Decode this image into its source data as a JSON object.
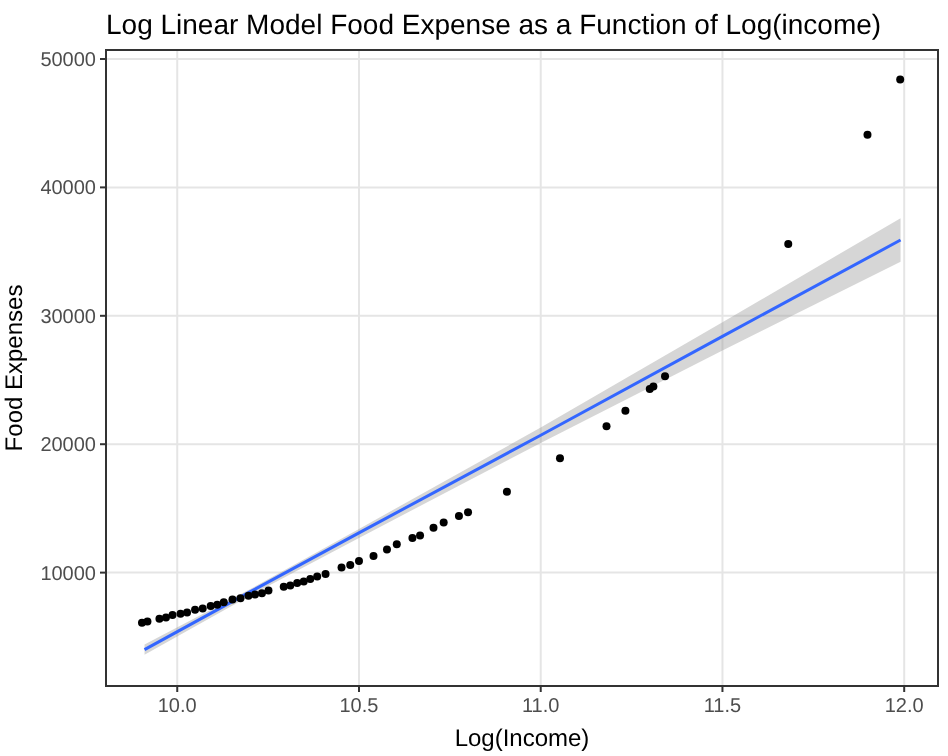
{
  "chart_data": {
    "type": "scatter",
    "title": "Log Linear Model Food Expense as a Function of Log(income)",
    "xlabel": "Log(Income)",
    "ylabel": "Food Expenses",
    "xlim": [
      9.804,
      12.093
    ],
    "ylim": [
      1170,
      50700
    ],
    "xticks": [
      {
        "value": 10,
        "label": "10.0"
      },
      10.5,
      {
        "value": 11,
        "label": "11.0"
      },
      11.5,
      {
        "value": 12,
        "label": "12.0"
      }
    ],
    "yticks": [
      10000,
      20000,
      30000,
      40000,
      50000
    ],
    "grid": true,
    "series": [
      {
        "color": "#000000",
        "marker": "circle",
        "x": [
          9.903,
          9.918,
          9.951,
          9.969,
          9.987,
          10.009,
          10.027,
          10.049,
          10.07,
          10.092,
          10.11,
          10.128,
          10.152,
          10.174,
          10.196,
          10.214,
          10.233,
          10.251,
          10.293,
          10.311,
          10.33,
          10.348,
          10.366,
          10.385,
          10.408,
          10.452,
          10.476,
          10.5,
          10.54,
          10.577,
          10.604,
          10.647,
          10.668,
          10.705,
          10.733,
          10.775,
          10.8,
          10.907,
          11.053,
          11.181,
          11.233,
          11.3,
          11.31,
          11.342,
          11.681,
          11.899,
          11.989
        ],
        "values": [
          6100,
          6200,
          6400,
          6500,
          6700,
          6800,
          6900,
          7100,
          7200,
          7400,
          7500,
          7700,
          7900,
          8000,
          8200,
          8300,
          8400,
          8600,
          8900,
          9000,
          9200,
          9300,
          9500,
          9700,
          9900,
          10400,
          10600,
          10900,
          11300,
          11800,
          12200,
          12700,
          12900,
          13500,
          13900,
          14400,
          14700,
          16300,
          18900,
          21400,
          22600,
          24300,
          24500,
          25300,
          35600,
          44100,
          48400
        ]
      },
      {
        "type": "line",
        "color": "#3366ff",
        "x": [
          9.91,
          10.2,
          10.5,
          11.0,
          11.5,
          11.99
        ],
        "values": [
          4000,
          8500,
          13100,
          20700,
          28400,
          35900
        ],
        "lower": [
          3600,
          8200,
          12700,
          20100,
          27300,
          34200
        ],
        "upper": [
          4400,
          8700,
          13400,
          21300,
          29500,
          37600
        ]
      }
    ]
  }
}
